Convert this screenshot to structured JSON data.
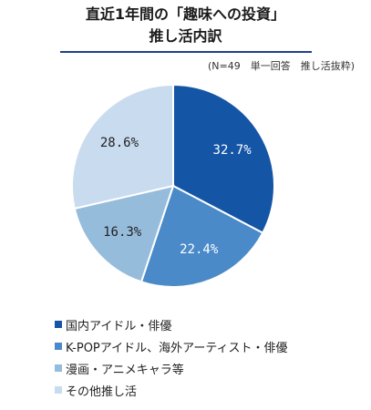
{
  "chart_data": {
    "type": "pie",
    "title_lines": [
      "直近1年間の「趣味への投資」",
      "推し活内訳"
    ],
    "note": "(N=49　単一回答　推し活抜粋)",
    "slices": [
      {
        "label": "国内アイドル・俳優",
        "value": 32.7,
        "display": "32.7%",
        "color": "#1555a6"
      },
      {
        "label": "K-POPアイドル、海外アーティスト・俳優",
        "value": 22.4,
        "display": "22.4%",
        "color": "#4a8ac8"
      },
      {
        "label": "漫画・アニメキャラ等",
        "value": 16.3,
        "display": "16.3%",
        "color": "#96bcdc"
      },
      {
        "label": "その他推し活",
        "value": 28.6,
        "display": "28.6%",
        "color": "#c9dbee"
      }
    ],
    "legend_position": "bottom-left"
  }
}
